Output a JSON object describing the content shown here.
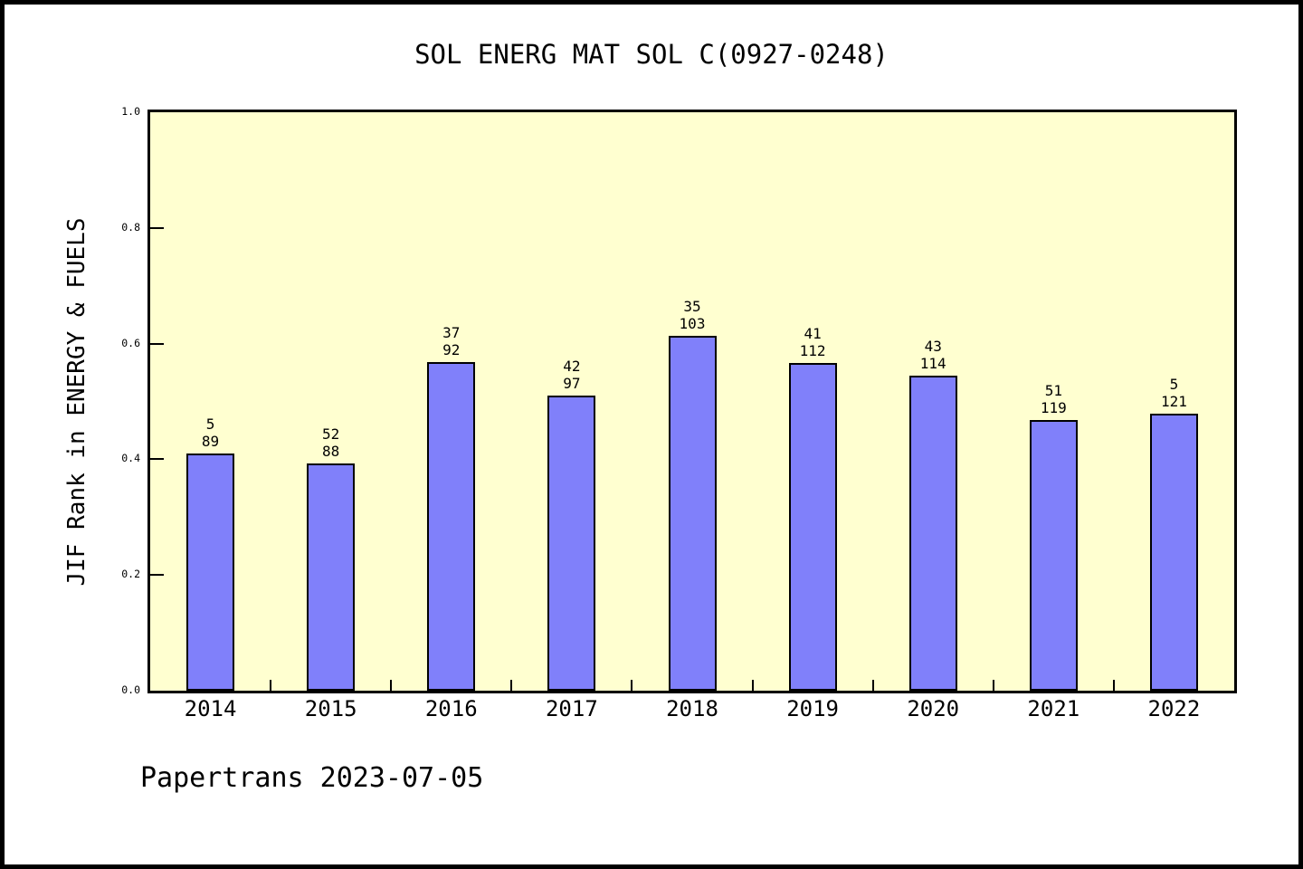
{
  "header": {
    "title": "SOL ENERG MAT SOL C(0927-0248)"
  },
  "footer": {
    "text": "Papertrans 2023-07-05"
  },
  "chart_data": {
    "type": "bar",
    "title": "SOL ENERG MAT SOL C(0927-0248)",
    "xlabel": "",
    "ylabel": "JIF Rank in ENERGY & FUELS",
    "categories": [
      "2014",
      "2015",
      "2016",
      "2017",
      "2018",
      "2019",
      "2020",
      "2021",
      "2022"
    ],
    "values": [
      0.41,
      0.393,
      0.568,
      0.51,
      0.613,
      0.566,
      0.545,
      0.468,
      0.479
    ],
    "bar_label_top": [
      "5",
      "52",
      "37",
      "42",
      "35",
      "41",
      "43",
      "51",
      "5"
    ],
    "bar_label_bottom": [
      "89",
      "88",
      "92",
      "97",
      "103",
      "112",
      "114",
      "119",
      "121"
    ],
    "ylim": [
      0.0,
      1.0
    ],
    "yticks": [
      "0.0",
      "0.2",
      "0.4",
      "0.6",
      "0.8",
      "1.0"
    ],
    "grid": false,
    "legend": "none",
    "colors": {
      "bar_fill": "#8080fa",
      "bar_border": "#000000",
      "plot_background": "#ffffd0",
      "page_background": "#ffffff",
      "frame": "#000000",
      "text": "#000000"
    }
  }
}
